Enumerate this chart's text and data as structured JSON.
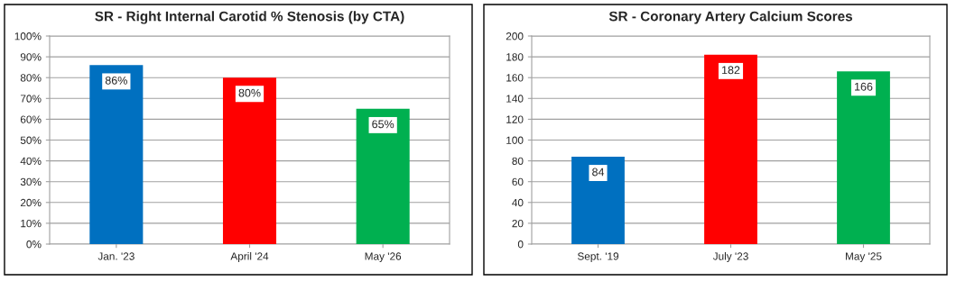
{
  "chart_data": [
    {
      "type": "bar",
      "title": "SR - Right Internal Carotid % Stenosis (by CTA)",
      "categories": [
        "Jan. '23",
        "April '24",
        "May '26"
      ],
      "values": [
        86,
        80,
        65
      ],
      "colors": [
        "#0070c0",
        "#ff0000",
        "#00b050"
      ],
      "value_labels": [
        "86%",
        "80%",
        "65%"
      ],
      "ylim": [
        0,
        100
      ],
      "yticks": [
        {
          "value": 0,
          "label": "0%"
        },
        {
          "value": 10,
          "label": "10%"
        },
        {
          "value": 20,
          "label": "20%"
        },
        {
          "value": 30,
          "label": "30%"
        },
        {
          "value": 40,
          "label": "40%"
        },
        {
          "value": 50,
          "label": "50%"
        },
        {
          "value": 60,
          "label": "60%"
        },
        {
          "value": 70,
          "label": "70%"
        },
        {
          "value": 80,
          "label": "80%"
        },
        {
          "value": 90,
          "label": "90%"
        },
        {
          "value": 100,
          "label": "100%"
        }
      ],
      "grid": "y",
      "legend": false
    },
    {
      "type": "bar",
      "title": "SR - Coronary Artery Calcium Scores",
      "categories": [
        "Sept. '19",
        "July '23",
        "May '25"
      ],
      "values": [
        84,
        182,
        166
      ],
      "colors": [
        "#0070c0",
        "#ff0000",
        "#00b050"
      ],
      "data_labels": true,
      "ylim": [
        0,
        200
      ],
      "yticks": [
        0,
        20,
        40,
        60,
        80,
        100,
        120,
        140,
        160,
        180,
        200
      ],
      "grid": "y",
      "legend": false
    }
  ]
}
